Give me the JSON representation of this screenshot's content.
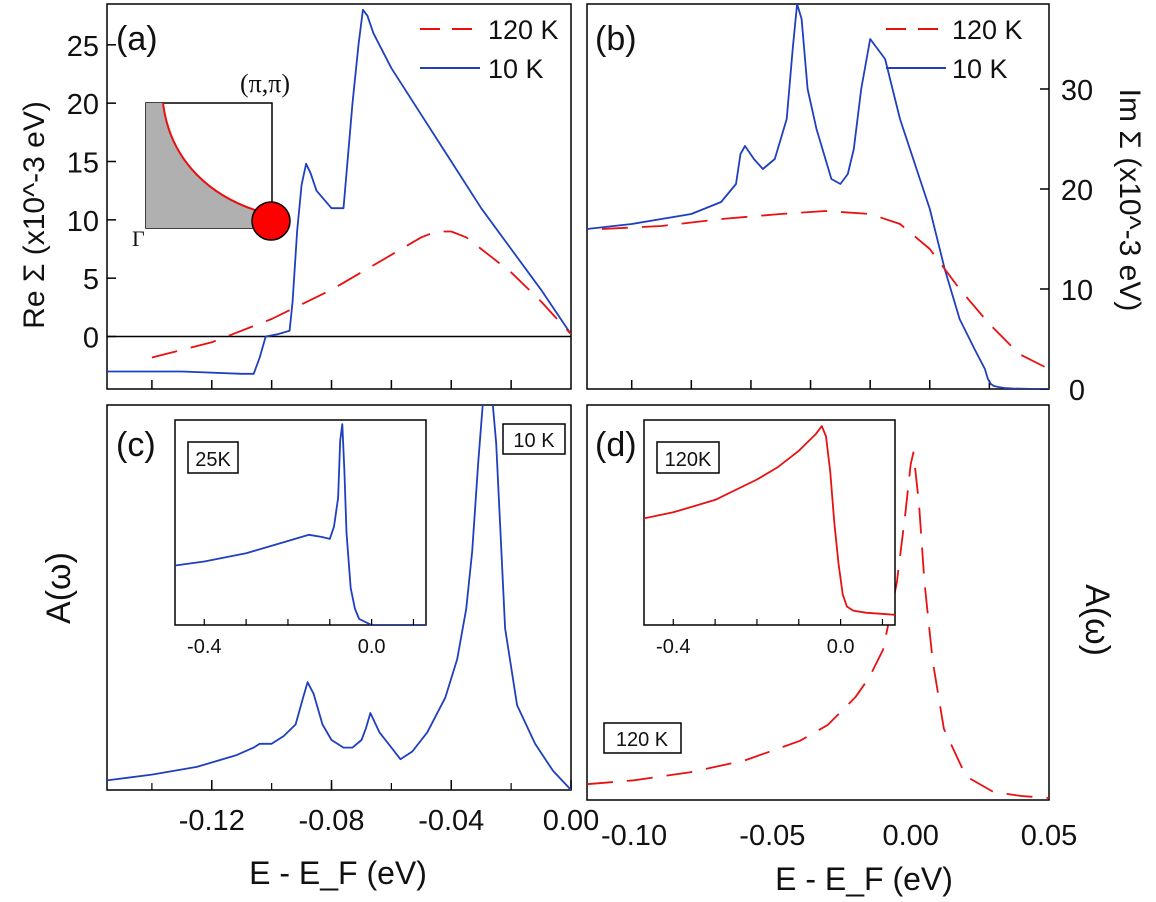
{
  "colors": {
    "blue": "#1f3fbf",
    "red": "#e81010",
    "fill_gray": "#b0b0b0",
    "dot_red": "#ff0000"
  },
  "x_axis_label": "E - E_F (eV)",
  "panels": {
    "a": {
      "tag": "(a)",
      "ylabel": "Re Σ (x10^-3 eV)",
      "inset": {
        "corner_label": "(π,π)",
        "origin_label": "Γ"
      }
    },
    "b": {
      "tag": "(b)",
      "ylabel": "Im Σ (x10^-3 eV)"
    },
    "c": {
      "tag": "(c)",
      "ylabel": "A(ω)",
      "box_label": "10 K",
      "inset_label": "25K"
    },
    "d": {
      "tag": "(d)",
      "ylabel": "A(ω)",
      "box_label": "120 K",
      "inset_label": "120K"
    }
  },
  "legend": [
    {
      "label": "120 K",
      "style": "dashed",
      "color": "#e81010"
    },
    {
      "label": "10 K",
      "style": "solid",
      "color": "#1f3fbf"
    }
  ],
  "chart_data": [
    {
      "id": "a",
      "type": "line",
      "xlim": [
        -0.155,
        0.0
      ],
      "ylim": [
        -4.5,
        28.5
      ],
      "yticks": [
        "0",
        "5",
        "10",
        "15",
        "20",
        "25"
      ],
      "series": [
        {
          "name": "10 K",
          "style": "solid",
          "x": [
            -0.155,
            -0.13,
            -0.11,
            -0.106,
            -0.104,
            -0.102,
            -0.098,
            -0.094,
            -0.093,
            -0.0915,
            -0.09,
            -0.0885,
            -0.087,
            -0.085,
            -0.08,
            -0.078,
            -0.076,
            -0.075,
            -0.073,
            -0.071,
            -0.0695,
            -0.068,
            -0.066,
            -0.06,
            -0.05,
            -0.04,
            -0.03,
            -0.02,
            -0.01,
            0.0
          ],
          "y": [
            -3,
            -3,
            -3.2,
            -3.2,
            -1.8,
            0,
            0.2,
            0.5,
            3,
            9,
            13,
            14.8,
            14,
            12.5,
            11,
            11,
            11,
            14,
            20,
            25,
            28,
            27.5,
            26,
            23,
            19,
            15,
            11,
            7.5,
            4,
            0.2
          ]
        },
        {
          "name": "120 K",
          "style": "dashed",
          "x": [
            -0.14,
            -0.12,
            -0.1,
            -0.08,
            -0.06,
            -0.05,
            -0.045,
            -0.04,
            -0.035,
            -0.03,
            -0.02,
            -0.01,
            0.0
          ],
          "y": [
            -1.8,
            -0.5,
            1.5,
            4,
            7,
            8.5,
            9,
            9,
            8.5,
            7.5,
            5.5,
            3,
            0.2
          ]
        }
      ]
    },
    {
      "id": "b",
      "type": "line",
      "xlim": [
        -0.155,
        0.0
      ],
      "ylim": [
        0,
        38.5
      ],
      "yticks": [
        "0",
        "10",
        "20",
        "30"
      ],
      "series": [
        {
          "name": "10 K",
          "style": "solid",
          "x": [
            -0.155,
            -0.14,
            -0.12,
            -0.11,
            -0.105,
            -0.1035,
            -0.102,
            -0.099,
            -0.096,
            -0.092,
            -0.088,
            -0.086,
            -0.0845,
            -0.083,
            -0.081,
            -0.078,
            -0.073,
            -0.07,
            -0.0675,
            -0.0655,
            -0.063,
            -0.06,
            -0.055,
            -0.05,
            -0.04,
            -0.035,
            -0.03,
            -0.025,
            -0.0215,
            -0.0205,
            -0.0195,
            -0.0185,
            -0.017,
            -0.015,
            -0.012,
            -0.008,
            -0.0045,
            0.0
          ],
          "y": [
            16,
            16.5,
            17.5,
            18.7,
            20.5,
            23.5,
            24.3,
            23,
            22,
            23,
            27,
            34,
            38.5,
            37,
            30,
            26,
            21,
            20.5,
            21.5,
            24,
            30,
            35,
            33,
            27,
            18,
            12,
            7,
            4,
            2,
            1,
            0.5,
            0.3,
            0.2,
            0.1,
            0.05,
            0.02,
            0.0,
            0.0
          ]
        },
        {
          "name": "120 K",
          "style": "dashed",
          "x": [
            -0.15,
            -0.13,
            -0.11,
            -0.09,
            -0.075,
            -0.06,
            -0.05,
            -0.04,
            -0.03,
            -0.02,
            -0.01,
            0.0
          ],
          "y": [
            16,
            16.3,
            17,
            17.5,
            17.8,
            17.5,
            16.5,
            14,
            10,
            6.5,
            3.5,
            2
          ]
        }
      ]
    },
    {
      "id": "c",
      "type": "line",
      "xlim": [
        -0.155,
        0.0
      ],
      "ylim": [
        0,
        1
      ],
      "xticks": [
        "-0.12",
        "-0.08",
        "-0.04",
        "0.00"
      ],
      "series": [
        {
          "name": "10 K",
          "style": "solid",
          "x": [
            -0.155,
            -0.14,
            -0.125,
            -0.112,
            -0.106,
            -0.104,
            -0.1,
            -0.096,
            -0.092,
            -0.0895,
            -0.088,
            -0.086,
            -0.083,
            -0.08,
            -0.076,
            -0.073,
            -0.07,
            -0.0685,
            -0.067,
            -0.064,
            -0.06,
            -0.057,
            -0.053,
            -0.048,
            -0.042,
            -0.038,
            -0.035,
            -0.033,
            -0.031,
            -0.029,
            -0.0268,
            -0.025,
            -0.022,
            -0.018,
            -0.012,
            -0.006,
            0.0
          ],
          "y": [
            0.025,
            0.04,
            0.06,
            0.09,
            0.11,
            0.12,
            0.12,
            0.14,
            0.17,
            0.24,
            0.28,
            0.25,
            0.17,
            0.13,
            0.11,
            0.11,
            0.13,
            0.16,
            0.2,
            0.15,
            0.11,
            0.08,
            0.1,
            0.15,
            0.24,
            0.34,
            0.47,
            0.62,
            0.85,
            1.05,
            1.06,
            0.9,
            0.42,
            0.22,
            0.12,
            0.05,
            0.0
          ]
        }
      ],
      "inset": {
        "label": "25K",
        "xlim": [
          -0.47,
          0.13
        ],
        "ylim": [
          0,
          1
        ],
        "xticks": [
          "-0.4",
          "0.0"
        ],
        "series": [
          {
            "name": "25K",
            "style": "solid",
            "color": "#1f3fbf",
            "x": [
              -0.47,
              -0.4,
              -0.3,
              -0.2,
              -0.15,
              -0.12,
              -0.1,
              -0.09,
              -0.08,
              -0.075,
              -0.07,
              -0.065,
              -0.06,
              -0.05,
              -0.04,
              -0.03,
              0.0,
              0.13
            ],
            "y": [
              0.29,
              0.31,
              0.35,
              0.41,
              0.44,
              0.43,
              0.42,
              0.48,
              0.62,
              0.9,
              0.98,
              0.75,
              0.45,
              0.18,
              0.08,
              0.03,
              0.0,
              0.0
            ]
          }
        ]
      }
    },
    {
      "id": "d",
      "type": "line",
      "xlim": [
        -0.117,
        0.05
      ],
      "ylim": [
        0,
        1
      ],
      "xticks": [
        "-0.10",
        "-0.05",
        "0.00",
        "0.05"
      ],
      "series": [
        {
          "name": "120 K",
          "style": "dashed",
          "x": [
            -0.117,
            -0.1,
            -0.08,
            -0.06,
            -0.04,
            -0.03,
            -0.02,
            -0.015,
            -0.01,
            -0.005,
            -0.002,
            0.0,
            0.001,
            0.003,
            0.005,
            0.008,
            0.012,
            0.02,
            0.03,
            0.04,
            0.05
          ],
          "y": [
            0.04,
            0.05,
            0.07,
            0.1,
            0.15,
            0.19,
            0.26,
            0.31,
            0.38,
            0.55,
            0.72,
            0.85,
            0.88,
            0.75,
            0.55,
            0.35,
            0.18,
            0.06,
            0.02,
            0.01,
            0.005
          ]
        }
      ],
      "inset": {
        "label": "120K",
        "xlim": [
          -0.47,
          0.13
        ],
        "ylim": [
          0,
          1
        ],
        "xticks": [
          "-0.4",
          "0.0"
        ],
        "series": [
          {
            "name": "120K",
            "style": "solid",
            "color": "#e81010",
            "x": [
              -0.47,
              -0.4,
              -0.3,
              -0.2,
              -0.15,
              -0.1,
              -0.08,
              -0.06,
              -0.045,
              -0.035,
              -0.025,
              -0.015,
              -0.005,
              0.005,
              0.015,
              0.03,
              0.06,
              0.13
            ],
            "y": [
              0.52,
              0.55,
              0.61,
              0.71,
              0.77,
              0.85,
              0.89,
              0.93,
              0.97,
              0.92,
              0.75,
              0.5,
              0.3,
              0.15,
              0.09,
              0.07,
              0.06,
              0.05
            ]
          }
        ]
      }
    }
  ]
}
